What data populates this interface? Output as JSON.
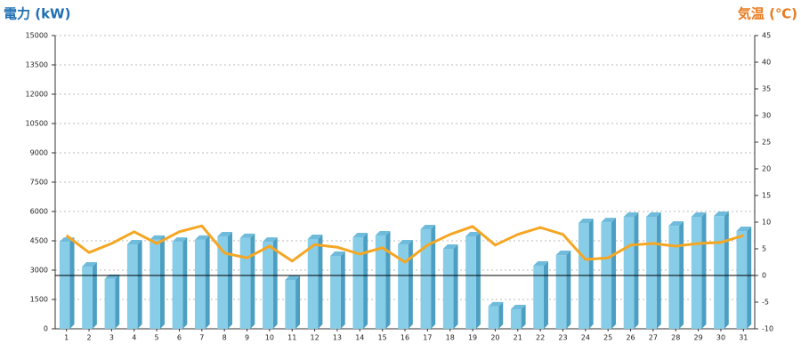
{
  "chart_data": {
    "type": "bar",
    "y_title": "電力 (kW)",
    "y2_title": "気温 (℃)",
    "categories": [
      "1",
      "2",
      "3",
      "4",
      "5",
      "6",
      "7",
      "8",
      "9",
      "10",
      "11",
      "12",
      "13",
      "14",
      "15",
      "16",
      "17",
      "18",
      "19",
      "20",
      "21",
      "22",
      "23",
      "24",
      "25",
      "26",
      "27",
      "28",
      "29",
      "30",
      "31"
    ],
    "series": [
      {
        "name": "電力",
        "type": "bar",
        "color": "#87cde8",
        "side_color": "#4c9fc2",
        "top_color": "#6fbbdc",
        "values": [
          4450,
          3180,
          2550,
          4320,
          4550,
          4450,
          4550,
          4730,
          4640,
          4450,
          2500,
          4590,
          3730,
          4680,
          4770,
          4320,
          5090,
          4090,
          4730,
          1140,
          1000,
          3230,
          3770,
          5410,
          5450,
          5730,
          5730,
          5270,
          5730,
          5770,
          5000
        ]
      },
      {
        "name": "気温",
        "type": "line",
        "axis": "y2",
        "color": "#f5a623",
        "values": [
          7.5,
          4.3,
          6,
          8.2,
          6,
          8.2,
          9.3,
          4.2,
          3.3,
          5.5,
          2.7,
          5.8,
          5.3,
          4,
          5.2,
          2.5,
          5.7,
          7.7,
          9.2,
          5.7,
          7.7,
          9,
          7.7,
          3,
          3.3,
          5.7,
          6,
          5.5,
          6,
          6.2,
          7.5
        ]
      }
    ],
    "ylim": [
      0,
      15000
    ],
    "yticks": [
      0,
      1500,
      3000,
      4500,
      6000,
      7500,
      9000,
      10500,
      12000,
      13500,
      15000
    ],
    "y2lim": [
      -10,
      45
    ],
    "y2ticks": [
      -10,
      -5,
      0,
      5,
      10,
      15,
      20,
      25,
      30,
      35,
      40,
      45
    ],
    "grid": true,
    "y2_zero_line": true
  }
}
